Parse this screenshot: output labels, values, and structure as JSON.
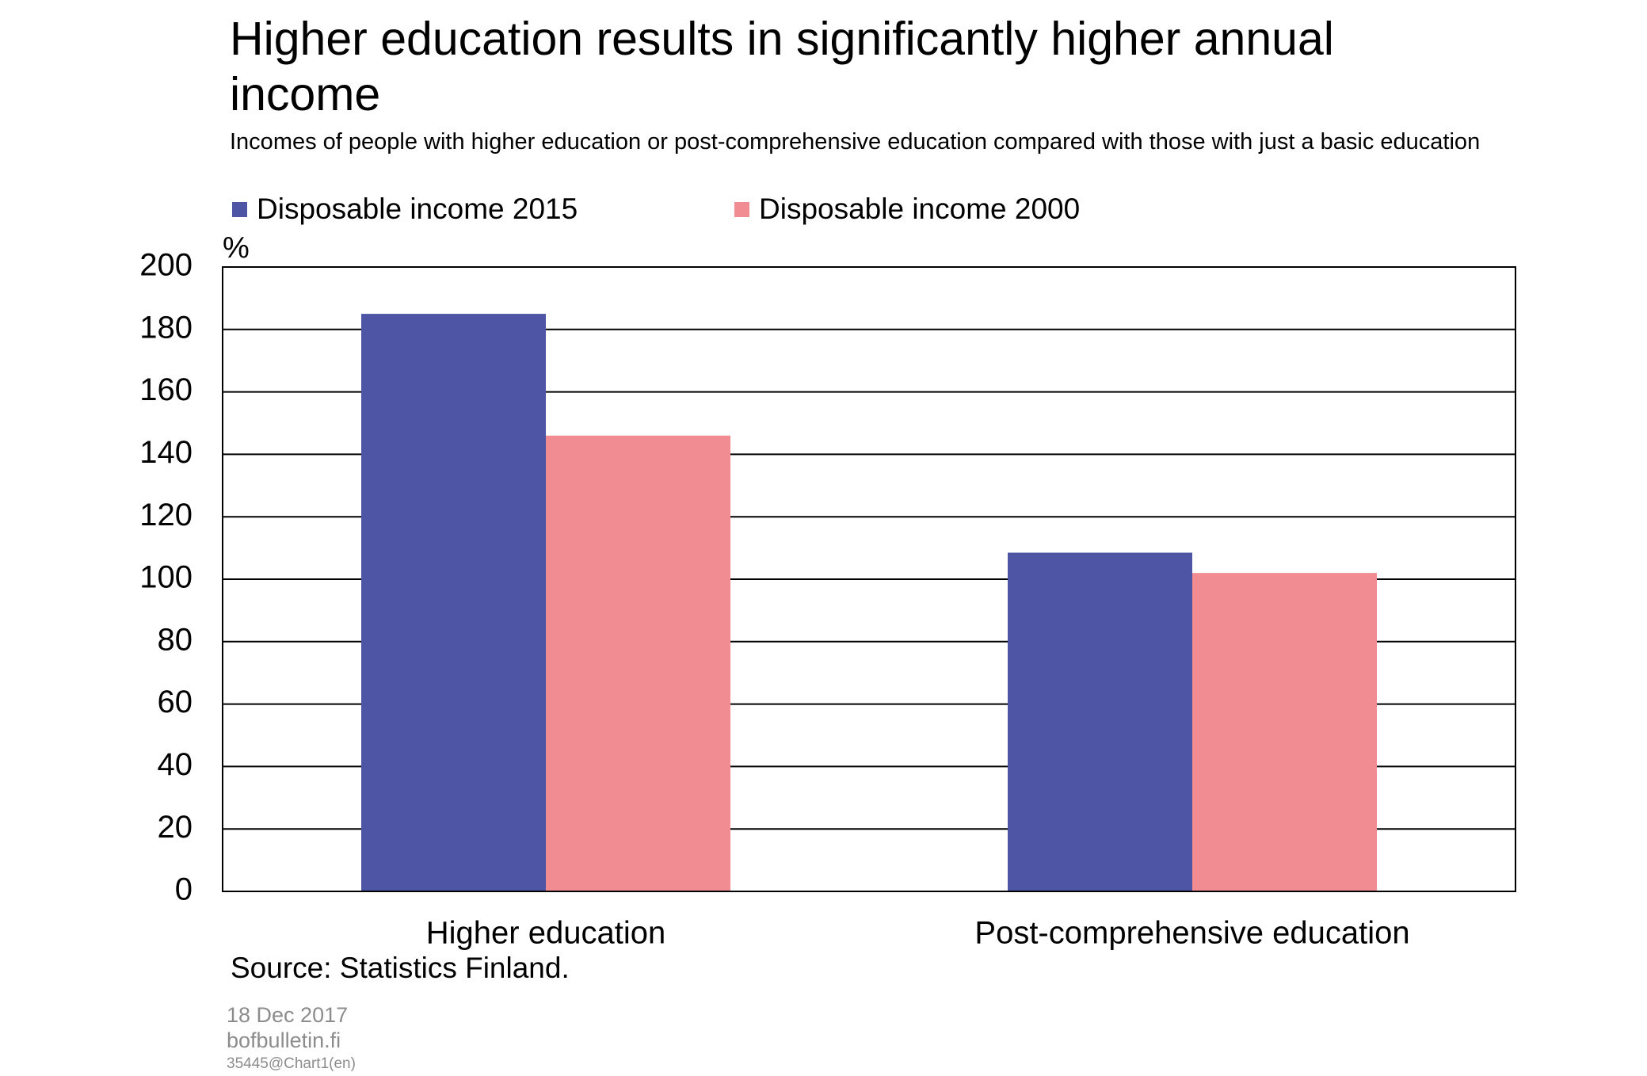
{
  "chart_data": {
    "type": "bar",
    "title": "Higher education results in significantly higher annual income",
    "subtitle": "Incomes of people with higher education or post-comprehensive education compared with those with just a basic education",
    "y_label": "%",
    "categories": [
      "Higher education",
      "Post-comprehensive education"
    ],
    "series": [
      {
        "name": "Disposable income 2015",
        "color": "#4e55a4",
        "values": [
          185,
          108.5
        ]
      },
      {
        "name": "Disposable income 2000",
        "color": "#f08c92",
        "values": [
          146,
          102
        ]
      }
    ],
    "ylim": [
      0,
      200
    ],
    "yticks": [
      0,
      20,
      40,
      60,
      80,
      100,
      120,
      140,
      160,
      180,
      200
    ],
    "grid": true,
    "source": "Source: Statistics Finland.",
    "date": "18 Dec 2017",
    "site": "bofbulletin.fi",
    "chart_id": "35445@Chart1(en)"
  }
}
